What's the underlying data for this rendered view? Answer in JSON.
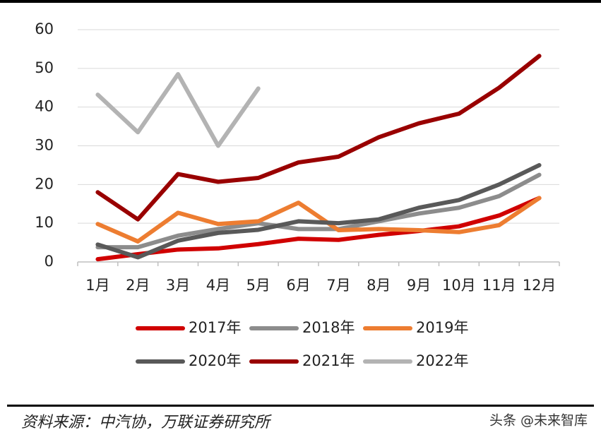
{
  "chart_data": {
    "type": "line",
    "categories": [
      "1月",
      "2月",
      "3月",
      "4月",
      "5月",
      "6月",
      "7月",
      "8月",
      "9月",
      "10月",
      "11月",
      "12月"
    ],
    "series": [
      {
        "name": "2017年",
        "color": "#d00000",
        "values": [
          0.7,
          2,
          3.2,
          3.5,
          4.6,
          6,
          5.7,
          7,
          8,
          9.2,
          12,
          16.5
        ]
      },
      {
        "name": "2018年",
        "color": "#8c8c8c",
        "values": [
          3.8,
          3.8,
          6.8,
          8.5,
          10,
          8.5,
          8.5,
          10.5,
          12.5,
          14,
          17,
          22.5
        ]
      },
      {
        "name": "2019年",
        "color": "#ed7d31",
        "values": [
          9.8,
          5.3,
          12.7,
          9.8,
          10.5,
          15.3,
          8.2,
          8.5,
          8.2,
          7.7,
          9.5,
          16.5
        ]
      },
      {
        "name": "2020年",
        "color": "#595959",
        "values": [
          4.5,
          1.2,
          5.5,
          7.5,
          8.3,
          10.5,
          10,
          11,
          14,
          16,
          20,
          25
        ]
      },
      {
        "name": "2021年",
        "color": "#990000",
        "values": [
          18,
          11,
          22.7,
          20.7,
          21.7,
          25.7,
          27.2,
          32.2,
          35.8,
          38.3,
          45,
          53.2
        ]
      },
      {
        "name": "2022年",
        "color": "#b3b3b3",
        "values": [
          43.2,
          33.5,
          48.5,
          30,
          44.8,
          null,
          null,
          null,
          null,
          null,
          null,
          null
        ]
      }
    ],
    "ylim": [
      0,
      60
    ],
    "yticks": [
      0,
      10,
      20,
      30,
      40,
      50,
      60
    ],
    "grid": true,
    "source": "资料来源：中汽协，万联证券研究所",
    "watermark": "头条 @未来智库"
  }
}
